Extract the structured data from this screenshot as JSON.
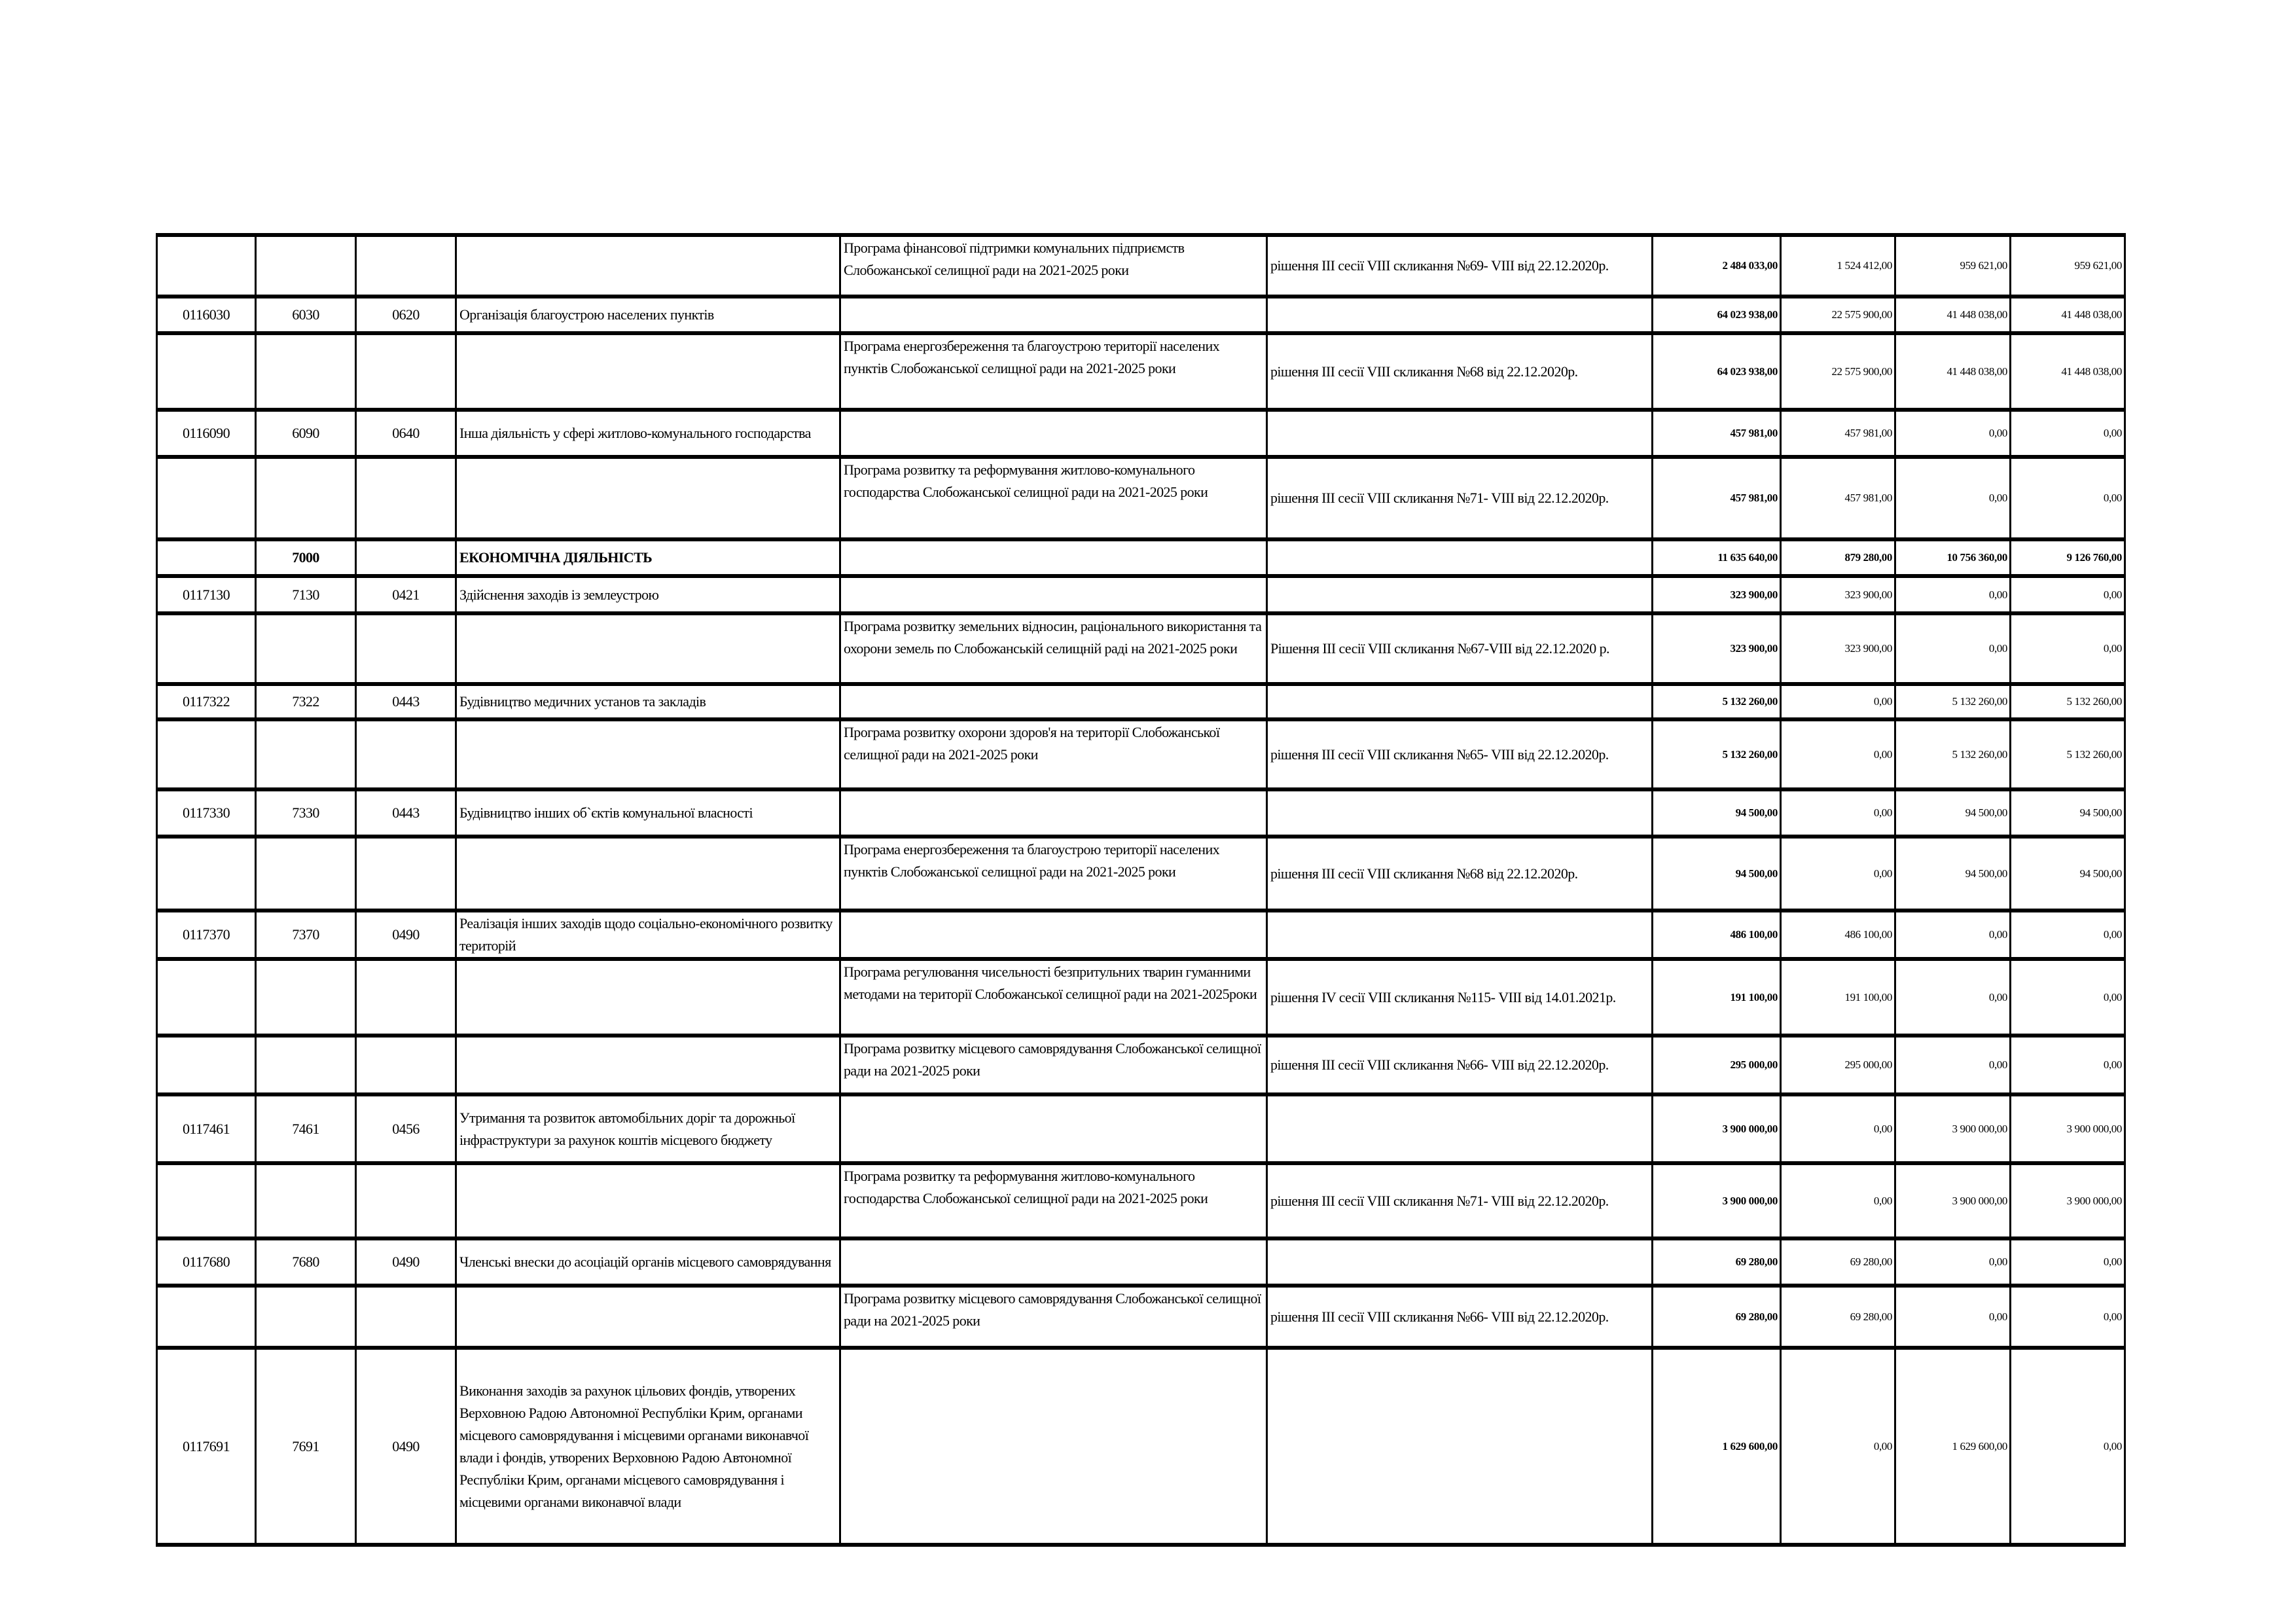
{
  "rows": [
    {
      "code1": "",
      "code2": "",
      "code3": "",
      "name": "",
      "program": "Програма фінансової підтримки комунальних підприємств Слобожанської селищної ради на 2021-2025 роки",
      "decision": "рішення ІІІ сесії VIII скликання №69- VIII від 22.12.2020р.",
      "total": "2 484 033,00",
      "general": "1 524 412,00",
      "special": "959 621,00",
      "dev": "959 621,00"
    },
    {
      "code1": "0116030",
      "code2": "6030",
      "code3": "0620",
      "name": "Організація благоустрою населених пунктів",
      "program": "",
      "decision": "",
      "total": "64 023 938,00",
      "general": "22 575 900,00",
      "special": "41 448 038,00",
      "dev": "41 448 038,00"
    },
    {
      "code1": "",
      "code2": "",
      "code3": "",
      "name": "",
      "program": "Програма енергозбереження та благоустрою території населених пунктів Слобожанської селищної ради на 2021-2025 роки",
      "decision": "рішення ІІІ сесії VIII скликання №68 від 22.12.2020р.",
      "total": "64 023 938,00",
      "general": "22 575 900,00",
      "special": "41 448 038,00",
      "dev": "41 448 038,00"
    },
    {
      "code1": "0116090",
      "code2": "6090",
      "code3": "0640",
      "name": "Інша діяльність у сфері житлово-комунального господарства",
      "program": "",
      "decision": "",
      "total": "457 981,00",
      "general": "457 981,00",
      "special": "0,00",
      "dev": "0,00"
    },
    {
      "code1": "",
      "code2": "",
      "code3": "",
      "name": "",
      "program": "Програма розвитку та реформування житлово-комунального господарства Слобожанської селищної ради на 2021-2025 роки",
      "decision": "рішення ІІІ сесії VIII скликання №71- VIII від 22.12.2020р.",
      "total": "457 981,00",
      "general": "457 981,00",
      "special": "0,00",
      "dev": "0,00"
    },
    {
      "code1": "",
      "code2": "7000",
      "code3": "",
      "name": "ЕКОНОМІЧНА ДІЯЛЬНІСТЬ",
      "program": "",
      "decision": "",
      "total": "11 635 640,00",
      "general": "879 280,00",
      "special": "10 756 360,00",
      "dev": "9 126 760,00",
      "bold": true
    },
    {
      "code1": "0117130",
      "code2": "7130",
      "code3": "0421",
      "name": "Здійснення  заходів із землеустрою",
      "program": "",
      "decision": "",
      "total": "323 900,00",
      "general": "323 900,00",
      "special": "0,00",
      "dev": "0,00"
    },
    {
      "code1": "",
      "code2": "",
      "code3": "",
      "name": "",
      "program": "Програма розвитку земельних відносин, раціонального використання та охорони земель по Слобожанській селищній раді на 2021-2025 роки",
      "decision": "Рішення ІІІ сесії VIII скликання №67-VIII від 22.12.2020 р.",
      "total": "323 900,00",
      "general": "323 900,00",
      "special": "0,00",
      "dev": "0,00"
    },
    {
      "code1": "0117322",
      "code2": "7322",
      "code3": "0443",
      "name": "Будівництво медичних установ та закладів",
      "program": "",
      "decision": "",
      "total": "5 132 260,00",
      "general": "0,00",
      "special": "5 132 260,00",
      "dev": "5 132 260,00"
    },
    {
      "code1": "",
      "code2": "",
      "code3": "",
      "name": "",
      "program": "Програма розвитку охорони здоров'я на території Слобожанської селищної ради на 2021-2025 роки",
      "decision": "рішення ІІІ сесії VIII скликання №65- VIII від 22.12.2020р.",
      "total": "5 132 260,00",
      "general": "0,00",
      "special": "5 132 260,00",
      "dev": "5 132 260,00"
    },
    {
      "code1": "0117330",
      "code2": "7330",
      "code3": "0443",
      "name": "Будівництво інших об`єктів комунальної власності",
      "program": "",
      "decision": "",
      "total": "94 500,00",
      "general": "0,00",
      "special": "94 500,00",
      "dev": "94 500,00"
    },
    {
      "code1": "",
      "code2": "",
      "code3": "",
      "name": "",
      "program": "Програма енергозбереження та благоустрою території населених пунктів Слобожанської селищної ради на 2021-2025 роки",
      "decision": "рішення ІІІ сесії VIII скликання №68 від 22.12.2020р.",
      "total": "94 500,00",
      "general": "0,00",
      "special": "94 500,00",
      "dev": "94 500,00"
    },
    {
      "code1": "0117370",
      "code2": "7370",
      "code3": "0490",
      "name": "Реалізація інших заходів щодо соціально-економічного розвитку територій",
      "program": "",
      "decision": "",
      "total": "486 100,00",
      "general": "486 100,00",
      "special": "0,00",
      "dev": "0,00"
    },
    {
      "code1": "",
      "code2": "",
      "code3": "",
      "name": "",
      "program": "Програма регулювання чисельності безпритульних тварин гуманними методами на території Слобожанської селищної ради на 2021-2025роки",
      "decision": "рішення IV сесії VIII скликання №115- VIII від 14.01.2021р.",
      "total": "191 100,00",
      "general": "191 100,00",
      "special": "0,00",
      "dev": "0,00"
    },
    {
      "code1": "",
      "code2": "",
      "code3": "",
      "name": "",
      "program": "Програма розвитку місцевого самоврядування Слобожанської селищної ради на 2021-2025 роки",
      "decision": "рішення ІІІ сесії VIII скликання №66- VIII від 22.12.2020р.",
      "total": "295 000,00",
      "general": "295 000,00",
      "special": "0,00",
      "dev": "0,00"
    },
    {
      "code1": "0117461",
      "code2": "7461",
      "code3": "0456",
      "name": "Утримання та розвиток автомобільних доріг та дорожньої інфраструктури за рахунок коштів місцевого бюджету",
      "program": "",
      "decision": "",
      "total": "3 900 000,00",
      "general": "0,00",
      "special": "3 900 000,00",
      "dev": "3 900 000,00"
    },
    {
      "code1": "",
      "code2": "",
      "code3": "",
      "name": "",
      "program": "Програма розвитку та реформування житлово-комунального господарства Слобожанської селищної ради на 2021-2025 роки",
      "decision": "рішення ІІІ сесії VIII скликання №71- VIII від 22.12.2020р.",
      "total": "3 900 000,00",
      "general": "0,00",
      "special": "3 900 000,00",
      "dev": "3 900 000,00"
    },
    {
      "code1": "0117680",
      "code2": "7680",
      "code3": "0490",
      "name": "Членські внески до асоціацій органів місцевого самоврядування",
      "program": "",
      "decision": "",
      "total": "69 280,00",
      "general": "69 280,00",
      "special": "0,00",
      "dev": "0,00"
    },
    {
      "code1": "",
      "code2": "",
      "code3": "",
      "name": "",
      "program": "Програма розвитку місцевого самоврядування Слобожанської селищної ради на 2021-2025 роки",
      "decision": "рішення ІІІ сесії VIII скликання №66- VIII від 22.12.2020р.",
      "total": "69 280,00",
      "general": "69 280,00",
      "special": "0,00",
      "dev": "0,00"
    },
    {
      "code1": "0117691",
      "code2": "7691",
      "code3": "0490",
      "name": "Виконання заходів за рахунок цільових фондів, утворених Верховною Радою Автономної Республіки Крим, органами місцевого самоврядування і місцевими органами виконавчої влади і фондів, утворених Верховною Радою Автономної Республіки Крим, органами місцевого самоврядування і місцевими органами виконавчої влади",
      "program": "",
      "decision": "",
      "total": "1 629 600,00",
      "general": "0,00",
      "special": "1 629 600,00",
      "dev": "0,00"
    }
  ]
}
